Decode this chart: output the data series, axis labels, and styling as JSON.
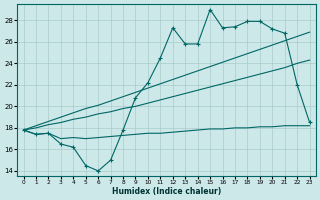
{
  "xlabel": "Humidex (Indice chaleur)",
  "bg_color": "#cce8e8",
  "grid_color": "#aacccc",
  "line_color": "#006666",
  "xlim": [
    -0.5,
    23.5
  ],
  "ylim": [
    13.5,
    29.5
  ],
  "xticks": [
    0,
    1,
    2,
    3,
    4,
    5,
    6,
    7,
    8,
    9,
    10,
    11,
    12,
    13,
    14,
    15,
    16,
    17,
    18,
    19,
    20,
    21,
    22,
    23
  ],
  "yticks": [
    14,
    16,
    18,
    20,
    22,
    24,
    26,
    28
  ],
  "curve_main": [
    17.8,
    17.4,
    17.5,
    16.5,
    16.2,
    14.5,
    14.0,
    15.0,
    17.8,
    20.8,
    22.2,
    24.5,
    27.3,
    25.8,
    25.8,
    29.0,
    27.3,
    27.4,
    27.9,
    27.9,
    27.2,
    26.8,
    22.0,
    18.5
  ],
  "curve_trend1": [
    17.8,
    18.2,
    18.6,
    19.0,
    19.4,
    19.8,
    20.1,
    20.5,
    20.9,
    21.3,
    21.7,
    22.1,
    22.5,
    22.9,
    23.3,
    23.7,
    24.1,
    24.5,
    24.9,
    25.3,
    25.7,
    26.1,
    26.5,
    26.9
  ],
  "curve_trend2": [
    17.8,
    18.0,
    18.3,
    18.5,
    18.8,
    19.0,
    19.3,
    19.5,
    19.8,
    20.0,
    20.3,
    20.6,
    20.9,
    21.2,
    21.5,
    21.8,
    22.1,
    22.4,
    22.7,
    23.0,
    23.3,
    23.6,
    24.0,
    24.3
  ],
  "curve_flat": [
    17.8,
    17.4,
    17.5,
    17.0,
    17.1,
    17.0,
    17.1,
    17.2,
    17.3,
    17.4,
    17.5,
    17.5,
    17.6,
    17.7,
    17.8,
    17.9,
    17.9,
    18.0,
    18.0,
    18.1,
    18.1,
    18.2,
    18.2,
    18.2
  ]
}
